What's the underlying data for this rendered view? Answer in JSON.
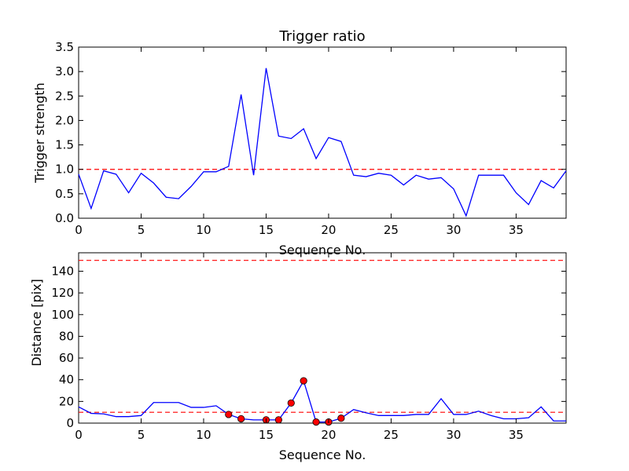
{
  "chart_data": [
    {
      "type": "line",
      "title": "Trigger ratio",
      "xlabel": "Sequence No.",
      "ylabel": "Trigger strength",
      "xlim": [
        0,
        39
      ],
      "ylim": [
        0,
        3.5
      ],
      "xticks": [
        "0",
        "5",
        "10",
        "15",
        "20",
        "25",
        "30",
        "35"
      ],
      "yticks": [
        "0.0",
        "0.5",
        "1.0",
        "1.5",
        "2.0",
        "2.5",
        "3.0",
        "3.5"
      ],
      "grid": false,
      "series": [
        {
          "color": "#0000ff",
          "x": [
            0,
            1,
            2,
            3,
            4,
            5,
            6,
            7,
            8,
            9,
            10,
            11,
            12,
            13,
            14,
            15,
            16,
            17,
            18,
            19,
            20,
            21,
            22,
            23,
            24,
            25,
            26,
            27,
            28,
            29,
            30,
            31,
            32,
            33,
            34,
            35,
            36,
            37,
            38,
            39
          ],
          "y": [
            0.9,
            0.2,
            0.97,
            0.9,
            0.52,
            0.92,
            0.72,
            0.43,
            0.4,
            0.65,
            0.95,
            0.95,
            1.06,
            2.53,
            0.88,
            3.07,
            1.68,
            1.63,
            1.83,
            1.22,
            1.65,
            1.57,
            0.88,
            0.85,
            0.92,
            0.88,
            0.68,
            0.88,
            0.8,
            0.83,
            0.6,
            0.05,
            0.88,
            0.88,
            0.88,
            0.52,
            0.28,
            0.77,
            0.62,
            0.97
          ]
        }
      ],
      "reference_lines": [
        {
          "y": 1.0,
          "color": "#ff0000",
          "style": "dashed"
        }
      ]
    },
    {
      "type": "line",
      "title": "",
      "xlabel": "Sequence No.",
      "ylabel": "Distance [pix]",
      "xlim": [
        0,
        39
      ],
      "ylim": [
        0,
        157
      ],
      "xticks": [
        "0",
        "5",
        "10",
        "15",
        "20",
        "25",
        "30",
        "35"
      ],
      "yticks": [
        "0",
        "20",
        "40",
        "60",
        "80",
        "100",
        "120",
        "140"
      ],
      "grid": false,
      "series": [
        {
          "color": "#0000ff",
          "x": [
            0,
            1,
            2,
            3,
            4,
            5,
            6,
            7,
            8,
            9,
            10,
            11,
            12,
            13,
            14,
            15,
            16,
            17,
            18,
            19,
            20,
            21,
            22,
            23,
            24,
            25,
            26,
            27,
            28,
            29,
            30,
            31,
            32,
            33,
            34,
            35,
            36,
            37,
            38,
            39
          ],
          "y": [
            15,
            9,
            8.5,
            6,
            6,
            7,
            19,
            19,
            19,
            14.5,
            14.5,
            16,
            8,
            4,
            3,
            3,
            3,
            18.5,
            39,
            1,
            1,
            4.5,
            12.5,
            9.5,
            7,
            7,
            7,
            8,
            8,
            22.5,
            8,
            8,
            11,
            7,
            4,
            4,
            5,
            15,
            2,
            2
          ]
        }
      ],
      "highlight_points": {
        "color": "#ff0000",
        "x": [
          12,
          13,
          15,
          16,
          17,
          18,
          19,
          20,
          21
        ],
        "y": [
          8,
          4,
          3,
          3,
          18.5,
          39,
          1,
          1,
          4.5
        ]
      },
      "reference_lines": [
        {
          "y": 150,
          "color": "#ff0000",
          "style": "dashed"
        },
        {
          "y": 10,
          "color": "#ff0000",
          "style": "dashed"
        }
      ]
    }
  ]
}
